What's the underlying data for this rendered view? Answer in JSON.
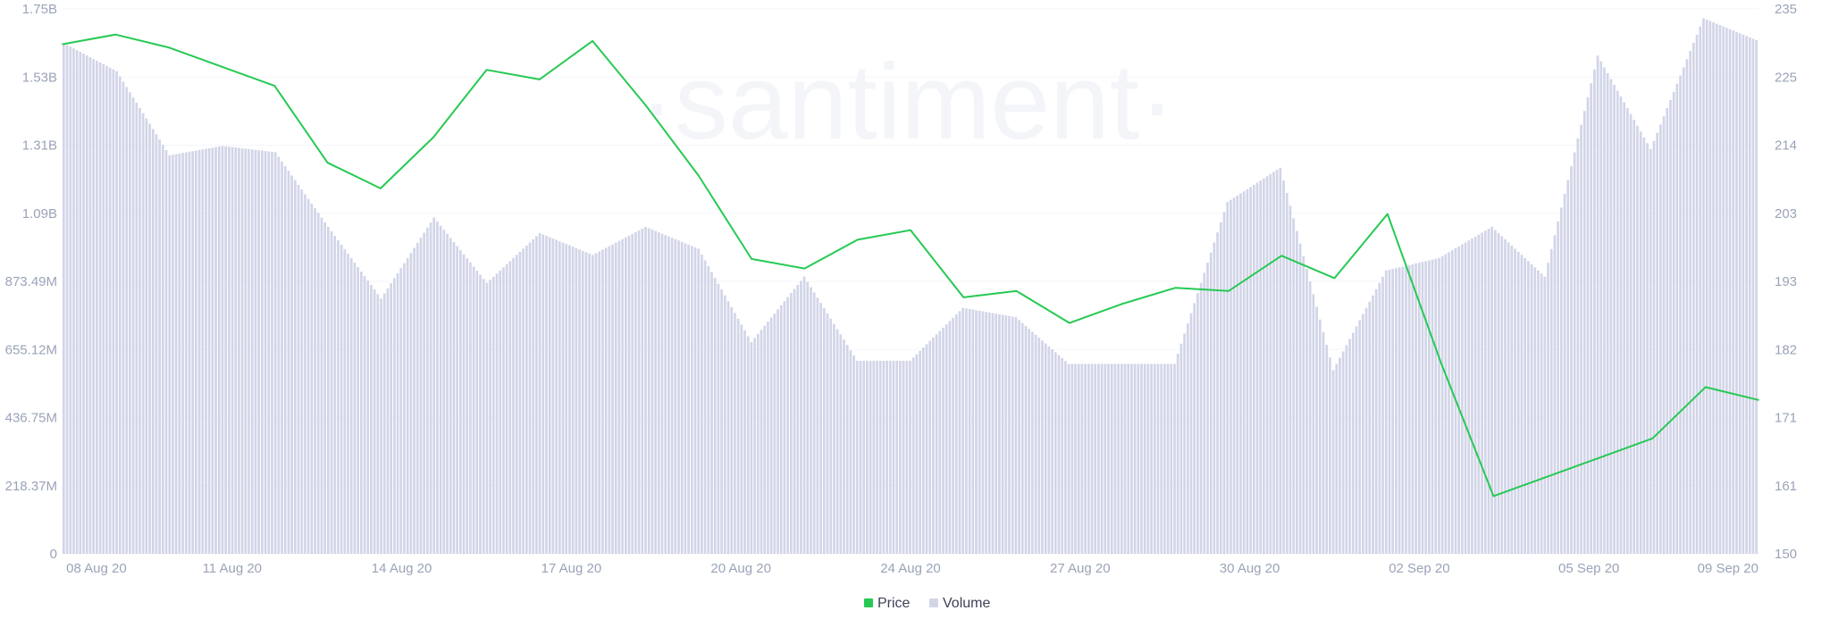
{
  "watermark": "·santiment·",
  "chart_data": {
    "type": "line",
    "legend": [
      {
        "name": "Price",
        "color": "#26c953"
      },
      {
        "name": "Volume",
        "color": "#d2d5e8"
      }
    ],
    "x_ticks": [
      "08 Aug 20",
      "11 Aug 20",
      "14 Aug 20",
      "17 Aug 20",
      "20 Aug 20",
      "24 Aug 20",
      "27 Aug 20",
      "30 Aug 20",
      "02 Sep 20",
      "05 Sep 20",
      "09 Sep 20"
    ],
    "left_ticks": [
      "0",
      "218.37M",
      "436.75M",
      "655.12M",
      "873.49M",
      "1.09B",
      "1.31B",
      "1.53B",
      "1.75B"
    ],
    "right_ticks": [
      "150",
      "161",
      "171",
      "182",
      "193",
      "203",
      "214",
      "225",
      "235"
    ],
    "volume_ylim": [
      0,
      1750000000
    ],
    "price_ylim": [
      150,
      235
    ],
    "x": [
      "08 Aug",
      "09 Aug",
      "10 Aug",
      "11 Aug",
      "12 Aug",
      "13 Aug",
      "14 Aug",
      "15 Aug",
      "16 Aug",
      "17 Aug",
      "18 Aug",
      "19 Aug",
      "20 Aug",
      "21 Aug",
      "22 Aug",
      "23 Aug",
      "24 Aug",
      "25 Aug",
      "26 Aug",
      "27 Aug",
      "28 Aug",
      "29 Aug",
      "30 Aug",
      "31 Aug",
      "01 Sep",
      "02 Sep",
      "03 Sep",
      "04 Sep",
      "05 Sep",
      "06 Sep",
      "07 Sep",
      "08 Sep",
      "09 Sep"
    ],
    "series": [
      {
        "name": "Volume",
        "axis": "left",
        "style": "bars",
        "values": [
          1640000000,
          1550000000,
          1280000000,
          1310000000,
          1290000000,
          1050000000,
          820000000,
          1080000000,
          870000000,
          1030000000,
          960000000,
          1050000000,
          980000000,
          680000000,
          890000000,
          620000000,
          620000000,
          790000000,
          760000000,
          610000000,
          610000000,
          610000000,
          1130000000,
          1240000000,
          590000000,
          910000000,
          950000000,
          1050000000,
          890000000,
          1600000000,
          1300000000,
          1720000000,
          1650000000
        ]
      },
      {
        "name": "Price",
        "axis": "right",
        "style": "line",
        "values": [
          229.5,
          231.0,
          229.0,
          226.0,
          223.0,
          211.0,
          207.0,
          215.0,
          225.5,
          224.0,
          230.0,
          220.0,
          209.0,
          196.0,
          194.5,
          199.0,
          200.5,
          190.0,
          191.0,
          186.0,
          189.0,
          191.5,
          191.0,
          196.5,
          193.0,
          203.0,
          180.0,
          159.0,
          162.0,
          165.0,
          168.0,
          176.0,
          174.0
        ]
      }
    ]
  }
}
